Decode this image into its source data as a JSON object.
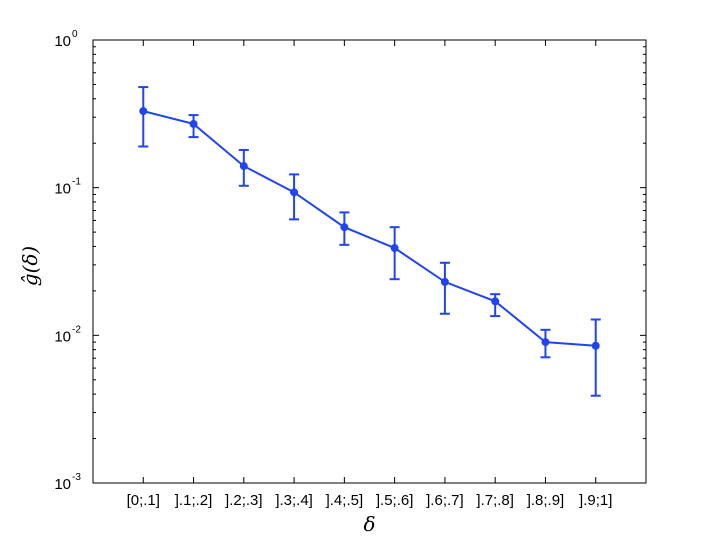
{
  "chart_data": {
    "type": "line",
    "title": "",
    "xlabel": "δ",
    "ylabel": "ĝ(δ)",
    "yscale": "log",
    "ylim": [
      0.001,
      1
    ],
    "yticks": [
      {
        "base": "10",
        "exp": "0"
      },
      {
        "base": "10",
        "exp": "-1"
      },
      {
        "base": "10",
        "exp": "-2"
      },
      {
        "base": "10",
        "exp": "-3"
      }
    ],
    "categories": [
      "[0;.1]",
      "].1;.2]",
      "].2;.3]",
      "].3;.4]",
      "].4;.5]",
      "].5;.6]",
      "].6;.7]",
      "].7;.8]",
      "].8;.9]",
      "].9;1]"
    ],
    "series": [
      {
        "values": [
          0.33,
          0.27,
          0.14,
          0.093,
          0.054,
          0.039,
          0.023,
          0.017,
          0.009,
          0.0085
        ],
        "err_low": [
          0.19,
          0.22,
          0.103,
          0.061,
          0.041,
          0.024,
          0.014,
          0.0135,
          0.0071,
          0.0039
        ],
        "err_high": [
          0.48,
          0.31,
          0.18,
          0.123,
          0.068,
          0.054,
          0.031,
          0.019,
          0.0109,
          0.0128
        ],
        "color": "#2244ee"
      }
    ],
    "grid": false,
    "legend": "none"
  }
}
